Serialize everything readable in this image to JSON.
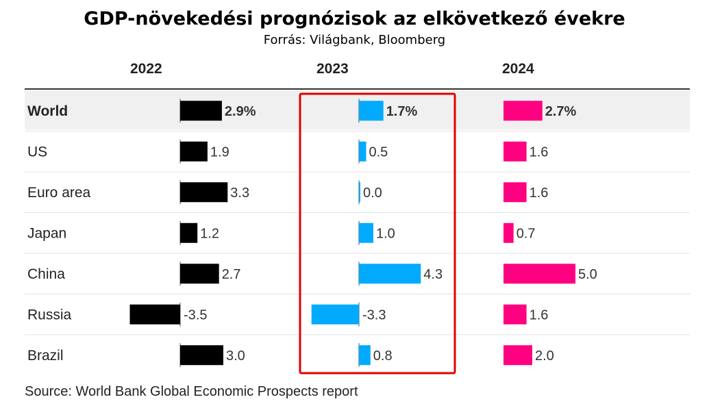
{
  "title": "GDP-növekedési prognózisok az elkövetkező évekre",
  "subtitle": "Forrás: Világbank, Bloomberg",
  "source": "Source: World Bank Global Economic Prospects report",
  "colors": {
    "2022": "#000000",
    "2023": "#00aaff",
    "2024": "#ff0080",
    "highlight_row": "#f0f0f0",
    "highlight_box": "#e00000",
    "divider": "#333333",
    "row_line": "#e2e2e2"
  },
  "chart_data": {
    "type": "bar",
    "categories": [
      "World",
      "US",
      "Euro area",
      "Japan",
      "China",
      "Russia",
      "Brazil"
    ],
    "highlight_category": "World",
    "highlight_series": "2023",
    "series": [
      {
        "name": "2022",
        "values": [
          2.9,
          1.9,
          3.3,
          1.2,
          2.7,
          -3.5,
          3.0
        ],
        "labels": [
          "2.9%",
          "1.9",
          "3.3",
          "1.2",
          "2.7",
          "-3.5",
          "3.0"
        ]
      },
      {
        "name": "2023",
        "values": [
          1.7,
          0.5,
          0.0,
          1.0,
          4.3,
          -3.3,
          0.8
        ],
        "labels": [
          "1.7%",
          "0.5",
          "0.0",
          "1.0",
          "4.3",
          "-3.3",
          "0.8"
        ]
      },
      {
        "name": "2024",
        "values": [
          2.7,
          1.6,
          1.6,
          0.7,
          5.0,
          1.6,
          2.0
        ],
        "labels": [
          "2.7%",
          "1.6",
          "1.6",
          "0.7",
          "5.0",
          "1.6",
          "2.0"
        ]
      }
    ]
  }
}
